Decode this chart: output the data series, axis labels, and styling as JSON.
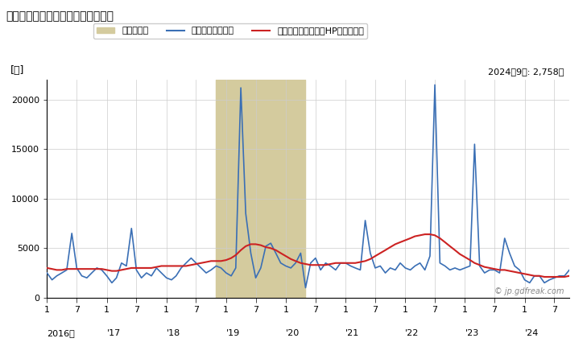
{
  "title": "秋田県の分譲住宅の新設着工床面積",
  "ylabel": "[㎡]",
  "annotation": "2024年9月: 2,758㎡",
  "legend_items": [
    "景気後退期",
    "分譲住宅の床面積",
    "分譲住宅の床面積（HPフィルタ）"
  ],
  "line_color": "#3a6fb5",
  "hp_color": "#cc2222",
  "recession_color": "#d4cb9e",
  "bg_color": "#ffffff",
  "watermark": "© jp.gdfreak.com",
  "ylim": [
    0,
    22000
  ],
  "yticks": [
    0,
    5000,
    10000,
    15000,
    20000
  ],
  "blue_data": [
    2500,
    1800,
    2200,
    2500,
    2800,
    6500,
    3000,
    2200,
    2000,
    2500,
    3000,
    2800,
    2200,
    1500,
    2000,
    3500,
    3200,
    7000,
    2800,
    2000,
    2500,
    2200,
    3000,
    2500,
    2000,
    1800,
    2200,
    3000,
    3500,
    4000,
    3500,
    3000,
    2500,
    2800,
    3200,
    3000,
    2500,
    2200,
    3000,
    21200,
    8500,
    4500,
    2000,
    3000,
    5200,
    5500,
    4500,
    3500,
    3200,
    3000,
    3500,
    4500,
    1000,
    3500,
    4000,
    2800,
    3500,
    3200,
    2800,
    3500,
    3500,
    3200,
    3000,
    2800,
    7800,
    4500,
    3000,
    3200,
    2500,
    3000,
    2800,
    3500,
    3000,
    2800,
    3200,
    3500,
    2800,
    4200,
    21500,
    3500,
    3200,
    2800,
    3000,
    2800,
    3000,
    3200,
    15500,
    3200,
    2500,
    2800,
    2800,
    2500,
    6000,
    4500,
    3200,
    2800,
    1800,
    1500,
    2200,
    2200,
    1500,
    1800,
    2000,
    2200,
    2200,
    2800
  ],
  "hp_data": [
    3000,
    2900,
    2800,
    2800,
    2900,
    2900,
    2900,
    2900,
    2900,
    2900,
    2900,
    2900,
    2800,
    2700,
    2700,
    2800,
    2900,
    3000,
    3000,
    3000,
    3000,
    3000,
    3100,
    3200,
    3200,
    3200,
    3200,
    3200,
    3200,
    3300,
    3400,
    3500,
    3600,
    3700,
    3700,
    3700,
    3800,
    4000,
    4300,
    4800,
    5200,
    5400,
    5400,
    5300,
    5100,
    5000,
    4800,
    4500,
    4200,
    3900,
    3700,
    3500,
    3400,
    3300,
    3300,
    3300,
    3300,
    3400,
    3500,
    3500,
    3500,
    3500,
    3500,
    3600,
    3700,
    3900,
    4200,
    4500,
    4800,
    5100,
    5400,
    5600,
    5800,
    6000,
    6200,
    6300,
    6400,
    6400,
    6300,
    6000,
    5600,
    5200,
    4800,
    4400,
    4100,
    3800,
    3500,
    3300,
    3100,
    3000,
    2900,
    2800,
    2800,
    2700,
    2600,
    2500,
    2400,
    2300,
    2200,
    2200,
    2100,
    2100,
    2100,
    2100,
    2100,
    2200
  ]
}
